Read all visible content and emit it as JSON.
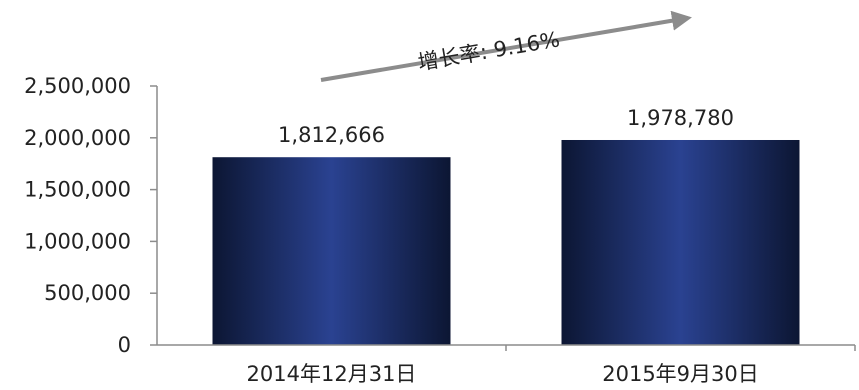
{
  "chart_data": {
    "type": "bar",
    "categories": [
      "2014年12月31日",
      "2015年9月30日"
    ],
    "values": [
      1812666,
      1978780
    ],
    "value_labels": [
      "1,812,666",
      "1,978,780"
    ],
    "yticks": [
      "0",
      "500,000",
      "1,000,000",
      "1,500,000",
      "2,000,000",
      "2,500,000"
    ],
    "ylim": [
      0,
      2500000
    ],
    "grid": false,
    "legend": "none",
    "annotation": "增长率: 9.16%",
    "colors": {
      "bar_center": "#2a4291",
      "bar_edge": "#0c1633",
      "axis": "#8c8c8c",
      "arrow": "#8c8c8c",
      "text": "#222222"
    }
  }
}
